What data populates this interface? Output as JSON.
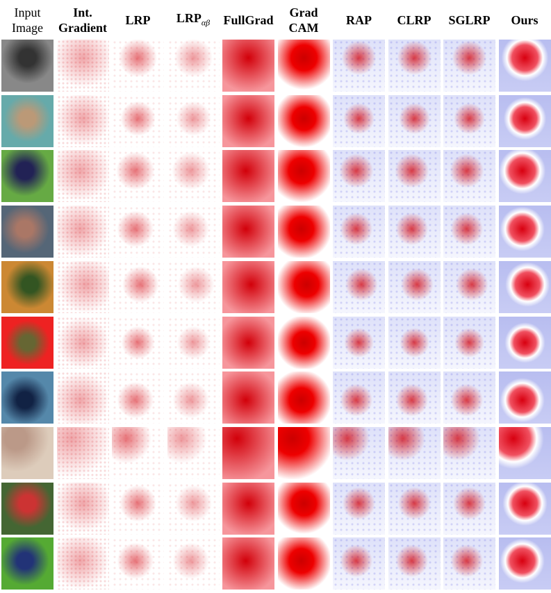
{
  "header": {
    "columns": [
      {
        "lines": [
          "Input",
          "Image"
        ]
      },
      {
        "lines": [
          "Int.",
          "Gradient"
        ]
      },
      {
        "lines": [
          "LRP"
        ]
      },
      {
        "lines": [
          "LRP"
        ],
        "subscript": "αβ"
      },
      {
        "lines": [
          "FullGrad"
        ]
      },
      {
        "lines": [
          "Grad",
          "CAM"
        ]
      },
      {
        "lines": [
          "RAP"
        ]
      },
      {
        "lines": [
          "CLRP"
        ]
      },
      {
        "lines": [
          "SGLRP"
        ]
      },
      {
        "lines": [
          "Ours"
        ]
      }
    ]
  }
}
